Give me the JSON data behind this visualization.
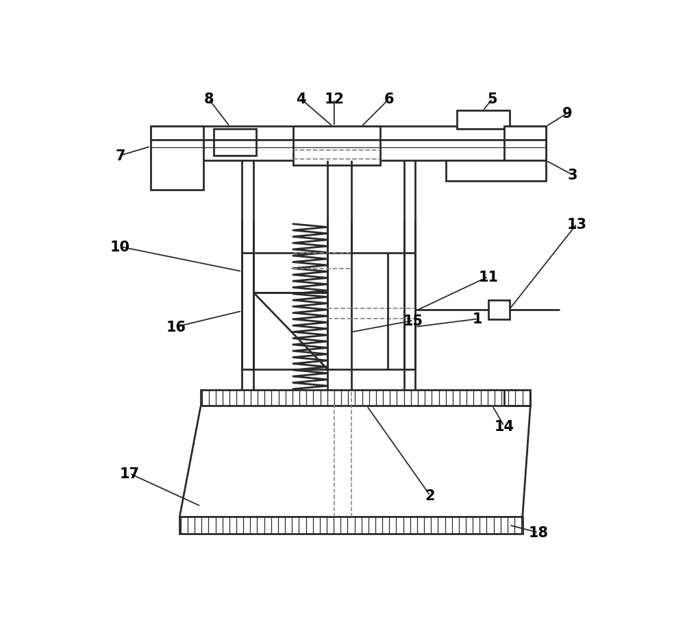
{
  "bg_color": "#ffffff",
  "lc": "#2a2a2a",
  "lw": 2.0,
  "ann_lw": 1.3,
  "dash_color": "#888888"
}
